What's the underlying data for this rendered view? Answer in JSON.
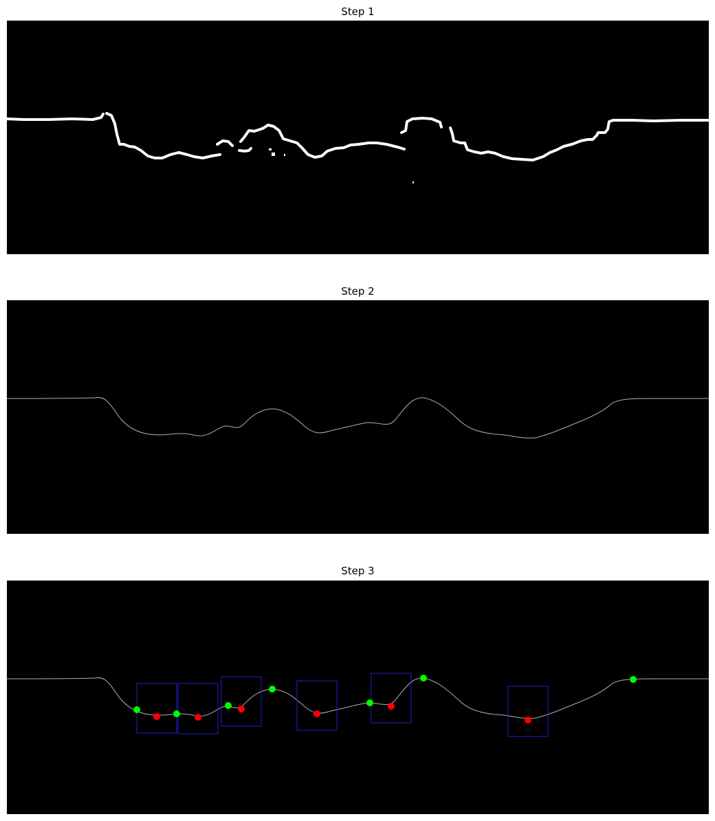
{
  "panels": [
    {
      "title": "Step 1"
    },
    {
      "title": "Step 2"
    },
    {
      "title": "Step 3"
    }
  ],
  "colors": {
    "background": "#000000",
    "mask": "#ffffff",
    "contour": "#b0b0b0",
    "box": "#1f1fd0",
    "peak": "#00ff00",
    "valley": "#ff0000"
  }
}
